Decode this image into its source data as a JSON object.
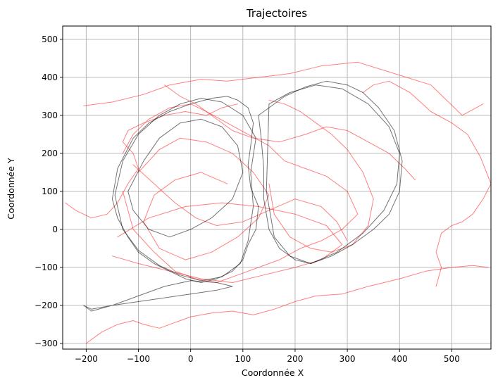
{
  "chart_data": {
    "type": "line",
    "title": "Trajectoires",
    "xlabel": "Coordonnée X",
    "ylabel": "Coordonnée Y",
    "xlim": [
      -245,
      575
    ],
    "ylim": [
      -315,
      535
    ],
    "xticks": [
      -200,
      -100,
      0,
      100,
      200,
      300,
      400,
      500
    ],
    "yticks": [
      -300,
      -200,
      -100,
      0,
      100,
      200,
      300,
      400,
      500
    ],
    "x_tick_labels": [
      "−200",
      "−100",
      "0",
      "100",
      "200",
      "300",
      "400",
      "500"
    ],
    "y_tick_labels": [
      "−300",
      "−200",
      "−100",
      "0",
      "100",
      "200",
      "300",
      "400",
      "500"
    ],
    "grid": true,
    "legend": "none",
    "colors": {
      "red_series": "#ff0000",
      "black_series": "#000000"
    },
    "series": [
      {
        "color": "#ff0000",
        "opacity": 0.5,
        "x": [
          -205,
          -150,
          -90,
          -40,
          20,
          70,
          130,
          190,
          250,
          320,
          390,
          460,
          520,
          560
        ],
        "y": [
          325,
          335,
          355,
          380,
          395,
          390,
          400,
          410,
          430,
          440,
          410,
          380,
          300,
          330
        ]
      },
      {
        "color": "#ff0000",
        "opacity": 0.5,
        "x": [
          -200,
          -170,
          -140,
          -110,
          -90,
          -60,
          -30,
          0,
          40,
          80,
          120,
          160,
          200,
          240,
          290,
          340,
          400,
          450,
          500,
          540,
          570
        ],
        "y": [
          -300,
          -270,
          -250,
          -240,
          -250,
          -260,
          -245,
          -230,
          -220,
          -215,
          -225,
          -210,
          -190,
          -175,
          -170,
          -150,
          -130,
          -110,
          -100,
          -95,
          -100
        ]
      },
      {
        "color": "#ff0000",
        "opacity": 0.5,
        "x": [
          -240,
          -220,
          -190,
          -160,
          -140,
          -120,
          -100,
          -110,
          -130,
          -120,
          -90,
          -50,
          -10,
          30,
          60,
          90
        ],
        "y": [
          70,
          50,
          30,
          40,
          70,
          120,
          160,
          200,
          230,
          260,
          280,
          300,
          310,
          300,
          320,
          330
        ]
      },
      {
        "color": "#ff0000",
        "opacity": 0.5,
        "x": [
          330,
          350,
          380,
          420,
          460,
          500,
          530,
          555,
          575,
          560,
          540,
          520,
          500,
          480,
          470,
          480,
          470
        ],
        "y": [
          360,
          380,
          390,
          360,
          310,
          280,
          250,
          190,
          120,
          80,
          40,
          20,
          10,
          -10,
          -60,
          -100,
          -150
        ]
      },
      {
        "color": "#ff0000",
        "opacity": 0.5,
        "x": [
          -130,
          -110,
          -80,
          -40,
          0,
          30,
          70,
          110,
          150,
          180,
          220,
          260,
          300,
          320,
          290,
          250,
          210,
          170,
          130,
          90,
          50,
          10,
          -30,
          -70,
          -110,
          -130
        ],
        "y": [
          200,
          250,
          290,
          320,
          330,
          310,
          280,
          250,
          220,
          180,
          160,
          140,
          100,
          40,
          0,
          -30,
          -50,
          -80,
          -100,
          -120,
          -140,
          -130,
          -110,
          -60,
          0,
          100
        ]
      },
      {
        "color": "#ff0000",
        "opacity": 0.5,
        "x": [
          -100,
          -60,
          -20,
          30,
          80,
          120,
          150,
          130,
          90,
          40,
          -10,
          -60,
          -90,
          -70,
          -30,
          20,
          70
        ],
        "y": [
          150,
          210,
          240,
          230,
          200,
          150,
          90,
          30,
          -20,
          -60,
          -80,
          -50,
          20,
          90,
          130,
          150,
          120
        ]
      },
      {
        "color": "#ff0000",
        "opacity": 0.5,
        "x": [
          150,
          180,
          210,
          240,
          270,
          300,
          330,
          350,
          340,
          310,
          270,
          230,
          190,
          160,
          150
        ],
        "y": [
          340,
          330,
          310,
          280,
          250,
          210,
          150,
          80,
          10,
          -40,
          -60,
          -50,
          -20,
          40,
          120
        ]
      },
      {
        "color": "#ff0000",
        "opacity": 0.5,
        "x": [
          -150,
          -100,
          -40,
          20,
          80,
          140,
          200,
          250,
          290,
          260,
          200,
          130,
          60,
          -10,
          -80,
          -140
        ],
        "y": [
          -70,
          -90,
          -110,
          -130,
          -140,
          -120,
          -100,
          -80,
          -40,
          10,
          40,
          60,
          70,
          60,
          30,
          -20
        ]
      },
      {
        "color": "#ff0000",
        "opacity": 0.5,
        "x": [
          -50,
          -20,
          10,
          40,
          80,
          120,
          170,
          220,
          260,
          300,
          340,
          380,
          410,
          430
        ],
        "y": [
          380,
          350,
          330,
          300,
          260,
          240,
          230,
          250,
          270,
          260,
          230,
          200,
          160,
          130
        ]
      },
      {
        "color": "#ff0000",
        "opacity": 0.5,
        "x": [
          -110,
          -70,
          -30,
          10,
          50,
          100,
          150,
          200,
          250,
          280,
          300
        ],
        "y": [
          170,
          120,
          70,
          30,
          10,
          20,
          50,
          80,
          60,
          20,
          -30
        ]
      },
      {
        "color": "#000000",
        "opacity": 0.55,
        "x": [
          -150,
          -140,
          -125,
          -110,
          -80,
          -40,
          0,
          40,
          70,
          90,
          110,
          120,
          115,
          110,
          115,
          130,
          125,
          110,
          100,
          80,
          50,
          20,
          -10,
          -40,
          -70,
          -100,
          -120,
          -140,
          -150
        ],
        "y": [
          80,
          160,
          200,
          240,
          280,
          310,
          330,
          345,
          350,
          340,
          320,
          280,
          220,
          170,
          110,
          60,
          0,
          -40,
          -80,
          -110,
          -130,
          -140,
          -130,
          -110,
          -90,
          -60,
          -20,
          30,
          80
        ]
      },
      {
        "color": "#000000",
        "opacity": 0.55,
        "x": [
          -145,
          -130,
          -100,
          -60,
          -20,
          20,
          60,
          100,
          125,
          115,
          120,
          110,
          95,
          60,
          20,
          -20,
          -60,
          -100,
          -130,
          -145
        ],
        "y": [
          90,
          180,
          250,
          300,
          330,
          345,
          335,
          300,
          240,
          150,
          60,
          -30,
          -90,
          -125,
          -135,
          -120,
          -95,
          -55,
          0,
          90
        ]
      },
      {
        "color": "#000000",
        "opacity": 0.55,
        "x": [
          130,
          150,
          180,
          220,
          260,
          300,
          330,
          360,
          390,
          405,
          400,
          380,
          350,
          310,
          270,
          230,
          200,
          170,
          150,
          140,
          140,
          135,
          130
        ],
        "y": [
          300,
          320,
          350,
          375,
          390,
          380,
          360,
          320,
          260,
          180,
          100,
          40,
          0,
          -40,
          -70,
          -90,
          -80,
          -50,
          0,
          80,
          160,
          240,
          300
        ]
      },
      {
        "color": "#000000",
        "opacity": 0.55,
        "x": [
          150,
          190,
          240,
          290,
          340,
          380,
          400,
          395,
          370,
          330,
          280,
          230,
          190,
          160,
          145,
          150
        ],
        "y": [
          330,
          360,
          380,
          370,
          330,
          270,
          200,
          120,
          50,
          -10,
          -60,
          -90,
          -70,
          -20,
          100,
          330
        ]
      },
      {
        "color": "#000000",
        "opacity": 0.55,
        "x": [
          -205,
          -190,
          -150,
          -100,
          -50,
          0,
          50,
          80,
          50,
          0,
          -50,
          -100,
          -150,
          -190,
          -205
        ],
        "y": [
          -200,
          -215,
          -200,
          -175,
          -150,
          -135,
          -140,
          -150,
          -160,
          -170,
          -180,
          -190,
          -200,
          -210,
          -200
        ]
      },
      {
        "color": "#000000",
        "opacity": 0.55,
        "x": [
          -120,
          -90,
          -60,
          -20,
          20,
          60,
          90,
          100,
          80,
          40,
          0,
          -40,
          -80,
          -110,
          -120
        ],
        "y": [
          100,
          180,
          240,
          280,
          290,
          270,
          220,
          150,
          80,
          30,
          0,
          -20,
          0,
          50,
          100
        ]
      }
    ]
  }
}
